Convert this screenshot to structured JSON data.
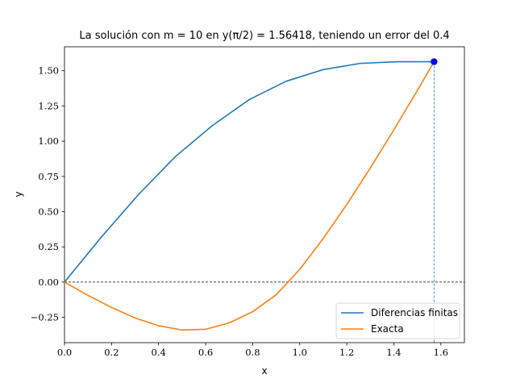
{
  "chart_data": {
    "type": "line",
    "title": "La solución con m = 10 en y(π/2) = 1.56418, teniendo un error del 0.4",
    "xlabel": "x",
    "ylabel": "y",
    "xlim": [
      0.0,
      1.7
    ],
    "ylim": [
      -0.43,
      1.67
    ],
    "xticks": [
      0.0,
      0.2,
      0.4,
      0.6,
      0.8,
      1.0,
      1.2,
      1.4,
      1.6
    ],
    "xtick_labels": [
      "0.0",
      "0.2",
      "0.4",
      "0.6",
      "0.8",
      "1.0",
      "1.2",
      "1.4",
      "1.6"
    ],
    "yticks": [
      -0.25,
      0.0,
      0.25,
      0.5,
      0.75,
      1.0,
      1.25,
      1.5
    ],
    "ytick_labels": [
      "−0.25",
      "0.00",
      "0.25",
      "0.50",
      "0.75",
      "1.00",
      "1.25",
      "1.50"
    ],
    "grid": false,
    "legend_position": "lower-right",
    "series": [
      {
        "name": "Diferencias finitas",
        "color": "#1f77b4",
        "x": [
          0.0,
          0.157,
          0.314,
          0.471,
          0.628,
          0.785,
          0.942,
          1.1,
          1.257,
          1.414,
          1.571
        ],
        "y": [
          0.0,
          0.32,
          0.62,
          0.89,
          1.11,
          1.295,
          1.425,
          1.508,
          1.552,
          1.564,
          1.564
        ]
      },
      {
        "name": "Exacta",
        "color": "#ff7f0e",
        "x": [
          0.0,
          0.1,
          0.2,
          0.3,
          0.4,
          0.5,
          0.6,
          0.7,
          0.8,
          0.9,
          1.0,
          1.1,
          1.2,
          1.3,
          1.4,
          1.5,
          1.571
        ],
        "y": [
          0.0,
          -0.095,
          -0.18,
          -0.255,
          -0.31,
          -0.34,
          -0.335,
          -0.29,
          -0.21,
          -0.09,
          0.09,
          0.31,
          0.55,
          0.81,
          1.08,
          1.36,
          1.564
        ]
      }
    ],
    "annotations": {
      "highlight_point": {
        "x": 1.571,
        "y": 1.564,
        "color": "#0000ff"
      },
      "hline_y": 0.0,
      "vline_x": 1.571,
      "vline_color": "#1f77b4"
    }
  }
}
